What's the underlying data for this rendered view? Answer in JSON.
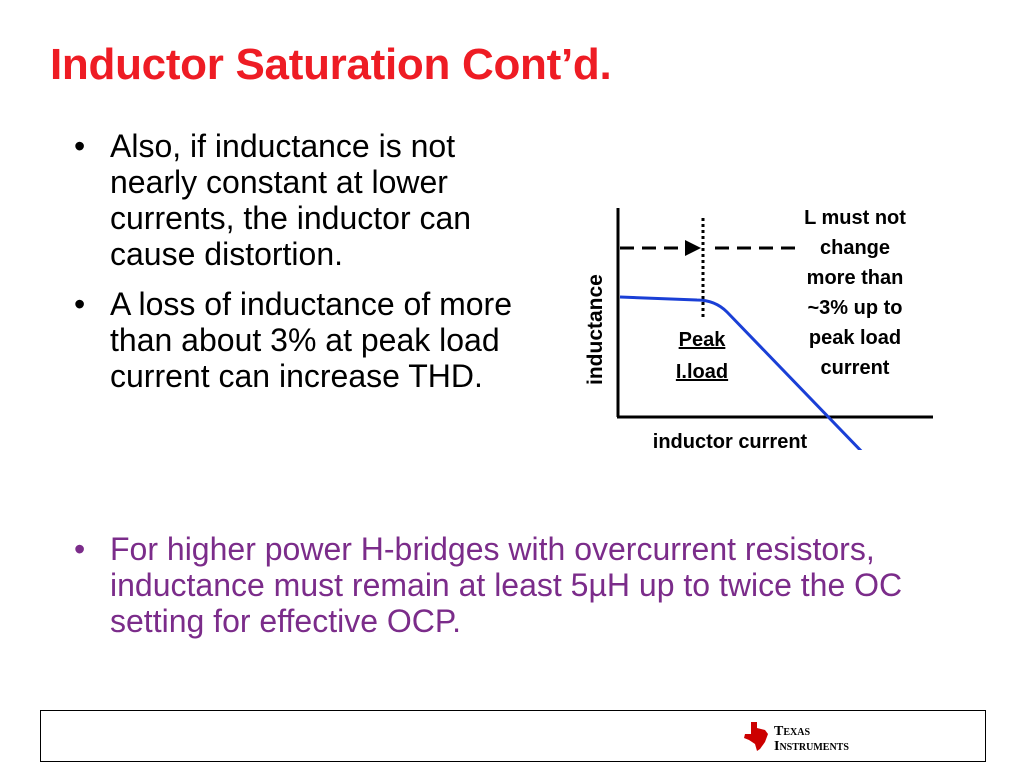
{
  "slide": {
    "title": "Inductor Saturation Cont’d.",
    "bullets": [
      "Also, if inductance is not nearly constant at lower currents, the inductor can cause distortion.",
      "A loss of inductance of more than about 3% at peak load current can increase THD."
    ],
    "bullet3": "For higher power H-bridges with overcurrent resistors, inductance must remain at least 5µH up to twice the OC setting for effective OCP."
  },
  "diagram": {
    "ylabel": "inductance",
    "xlabel": "inductor current",
    "peak_line1": "Peak",
    "peak_line2": "I.load",
    "note": [
      "L must not",
      "change",
      "more than",
      "~3% up to",
      "peak load",
      "current"
    ]
  },
  "logo": {
    "line1": "Texas",
    "line2": "Instruments"
  },
  "colors": {
    "title": "#ee1c24",
    "bullet3": "#7b2c8a",
    "curve": "#1a3fd6",
    "logo_mark": "#cc0000"
  }
}
